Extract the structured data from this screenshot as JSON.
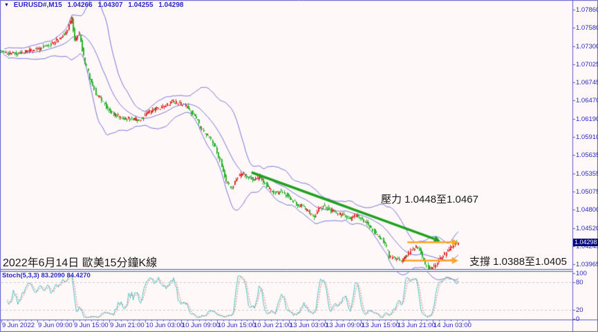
{
  "header": {
    "symbol_period": "EURUSD#,M15",
    "open": "1.04266",
    "high": "1.04307",
    "low": "1.04255",
    "close": "1.04298"
  },
  "annotations": {
    "resistance": "壓力 1.0448至1.0467",
    "support": "支撐 1.0388至1.0405",
    "date_label": "2022年6月14日 歐美15分鐘K線"
  },
  "indicator": {
    "label": "Stoch(5,3,3) 83.2090 84.4270"
  },
  "price_axis": {
    "current": "1.04298",
    "labels": [
      "1.07860",
      "1.07580",
      "1.07300",
      "1.07025",
      "1.06745",
      "1.06470",
      "1.06190",
      "1.05910",
      "1.05635",
      "1.05355",
      "1.05075",
      "1.04800",
      "1.04520",
      "1.04245",
      "1.03965"
    ]
  },
  "stoch_axis": {
    "labels": [
      "100",
      "80",
      "20",
      "0"
    ]
  },
  "time_axis": {
    "labels": [
      "9 Jun 2022",
      "9 Jun 09:00",
      "9 Jun 15:00",
      "9 Jun 21:00",
      "10 Jun 03:00",
      "10 Jun 09:00",
      "10 Jun 15:00",
      "10 Jun 21:00",
      "13 Jun 03:00",
      "13 Jun 09:00",
      "13 Jun 15:00",
      "13 Jun 21:00",
      "14 Jun 03:00"
    ]
  },
  "colors": {
    "background": "#FEF8F8",
    "frame": "#5A5AC8",
    "axis_text": "#2828C8",
    "candle_up": "#E03030",
    "candle_down": "#2FB42F",
    "bollinger": "#7474DA",
    "trendline": "#1FA11F",
    "arrow": "#FFA426",
    "stoch_k": "#49C5C5",
    "stoch_d": "#E05050",
    "stoch_levels": "#C8C8C8",
    "price_tag_bg": "#00007F",
    "price_tag_text": "#FFFFFF"
  },
  "chart_data": {
    "type": "candlestick",
    "title": "EURUSD#,M15",
    "symbol": "EURUSD#",
    "timeframe": "M15",
    "current_ohlc": {
      "open": 1.04266,
      "high": 1.04307,
      "low": 1.04255,
      "close": 1.04298
    },
    "visible_price_range": [
      1.0385,
      1.0789
    ],
    "time_range": "9 Jun 2022 03:00 to 14 Jun 2022 06:00, weekend 11-12 Jun omitted",
    "candle_count": 306,
    "label_every_n_candles": 24,
    "price_path_keypoints": [
      [
        0,
        1.0722
      ],
      [
        8,
        1.0718
      ],
      [
        18,
        1.0722
      ],
      [
        27,
        1.0727
      ],
      [
        36,
        1.0736
      ],
      [
        43,
        1.0748
      ],
      [
        46,
        1.0762
      ],
      [
        48,
        1.0773
      ],
      [
        50,
        1.0739
      ],
      [
        53,
        1.0749
      ],
      [
        56,
        1.0713
      ],
      [
        60,
        1.0682
      ],
      [
        64,
        1.0657
      ],
      [
        67,
        1.0651
      ],
      [
        71,
        1.0637
      ],
      [
        76,
        1.0626
      ],
      [
        81,
        1.0621
      ],
      [
        88,
        1.0619
      ],
      [
        94,
        1.0618
      ],
      [
        98,
        1.0628
      ],
      [
        104,
        1.0634
      ],
      [
        110,
        1.0639
      ],
      [
        115,
        1.0646
      ],
      [
        120,
        1.0643
      ],
      [
        125,
        1.0637
      ],
      [
        131,
        1.0621
      ],
      [
        135,
        1.0601
      ],
      [
        140,
        1.059
      ],
      [
        144,
        1.0576
      ],
      [
        148,
        1.0548
      ],
      [
        151,
        1.0524
      ],
      [
        155,
        1.0512
      ],
      [
        158,
        1.0529
      ],
      [
        162,
        1.0536
      ],
      [
        165,
        1.0531
      ],
      [
        169,
        1.0526
      ],
      [
        173,
        1.0529
      ],
      [
        176,
        1.0523
      ],
      [
        180,
        1.0511
      ],
      [
        184,
        1.0505
      ],
      [
        187,
        1.0508
      ],
      [
        191,
        1.0503
      ],
      [
        195,
        1.0496
      ],
      [
        198,
        1.0489
      ],
      [
        202,
        1.0484
      ],
      [
        206,
        1.0478
      ],
      [
        209,
        1.0468
      ],
      [
        213,
        1.048
      ],
      [
        217,
        1.0486
      ],
      [
        221,
        1.0478
      ],
      [
        225,
        1.0474
      ],
      [
        230,
        1.0471
      ],
      [
        234,
        1.0465
      ],
      [
        238,
        1.0472
      ],
      [
        242,
        1.0465
      ],
      [
        246,
        1.0457
      ],
      [
        249,
        1.0448
      ],
      [
        253,
        1.044
      ],
      [
        257,
        1.0428
      ],
      [
        260,
        1.0408
      ],
      [
        264,
        1.0404
      ],
      [
        268,
        1.0402
      ],
      [
        271,
        1.0408
      ],
      [
        275,
        1.0418
      ],
      [
        278,
        1.0424
      ],
      [
        281,
        1.0415
      ],
      [
        283,
        1.04
      ],
      [
        286,
        1.0392
      ],
      [
        289,
        1.039
      ],
      [
        292,
        1.0398
      ],
      [
        294,
        1.0406
      ],
      [
        297,
        1.0412
      ],
      [
        300,
        1.042
      ],
      [
        303,
        1.0426
      ],
      [
        305,
        1.043
      ]
    ],
    "bollinger": {
      "period": 20,
      "deviation": 2.3
    },
    "stochastic": {
      "k_period": 5,
      "slowing": 3,
      "d_period": 3,
      "last_k": 83.209,
      "last_d": 84.427,
      "levels": [
        20,
        80
      ]
    },
    "trendline": {
      "from_candle": 167,
      "from_price": 1.0537,
      "to_candle": 293,
      "to_price": 1.0432
    },
    "resistance_zone": [
      1.0448,
      1.0467
    ],
    "support_zone": [
      1.0388,
      1.0405
    ],
    "arrows": [
      {
        "from_candle": 271,
        "to_candle": 305,
        "price": 1.043
      },
      {
        "from_candle": 269,
        "to_candle": 305,
        "price": 1.0402
      }
    ]
  }
}
